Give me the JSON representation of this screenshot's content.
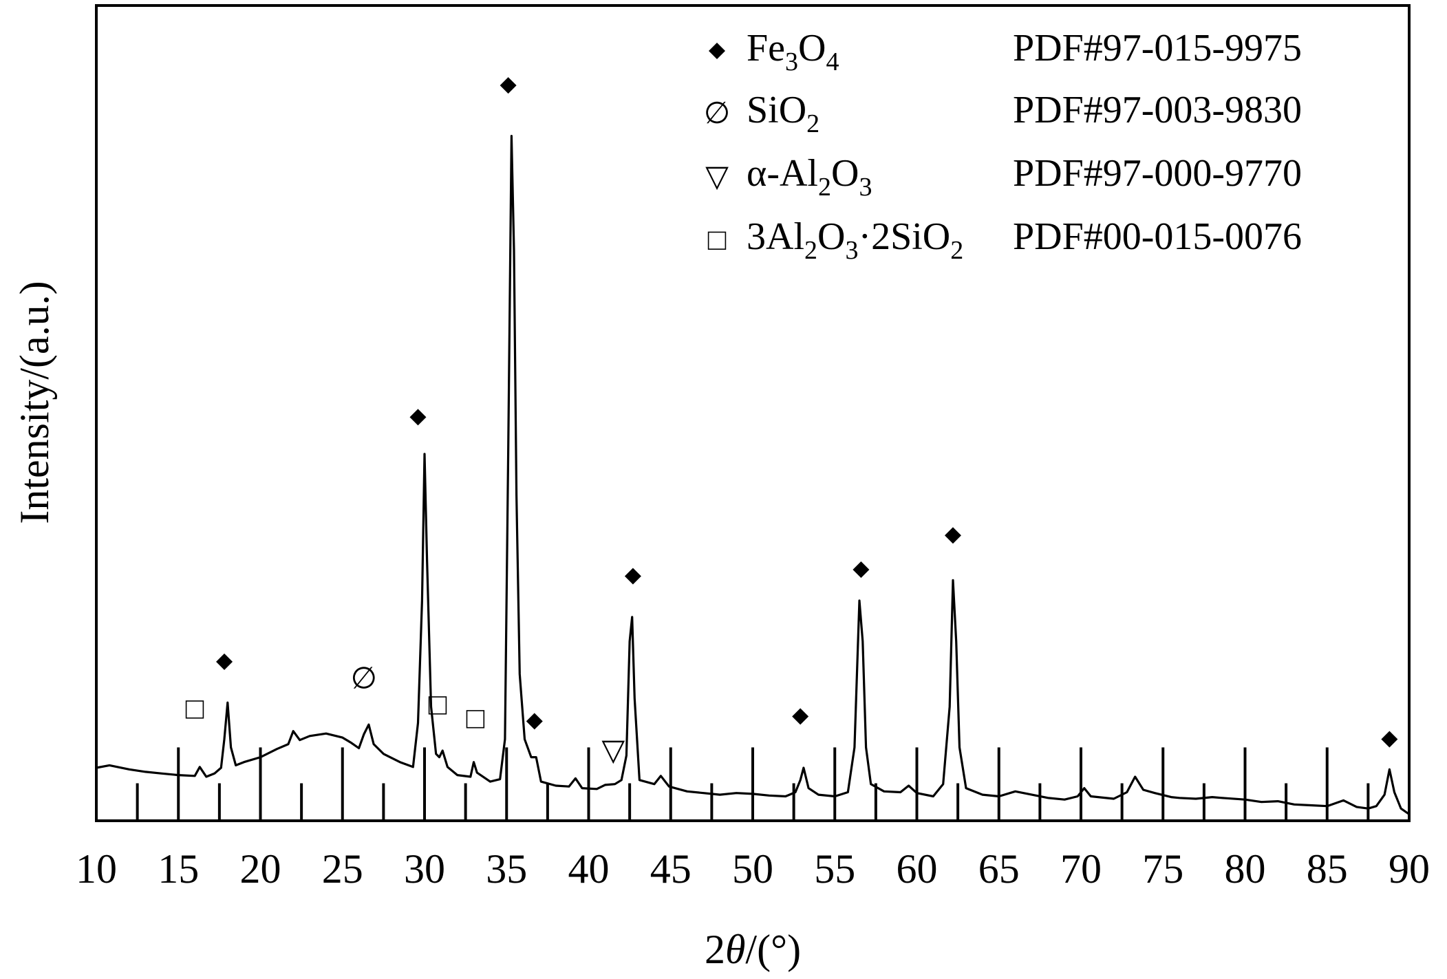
{
  "chart_data": {
    "type": "line",
    "title": "",
    "xlabel": {
      "prefix": "2",
      "symbol": "θ",
      "suffix": "/(°)"
    },
    "ylabel": "Intensity/(a.u.)",
    "xlim": [
      10,
      90
    ],
    "ylim": [
      0,
      100
    ],
    "y_ticks_shown": false,
    "grid": false,
    "x_ticks": [
      10,
      15,
      20,
      25,
      30,
      35,
      40,
      45,
      50,
      55,
      60,
      65,
      70,
      75,
      80,
      85,
      90
    ],
    "series": [
      {
        "points": [
          [
            10.0,
            6.5
          ],
          [
            10.8,
            6.8
          ],
          [
            12,
            6.3
          ],
          [
            13,
            6.0
          ],
          [
            14,
            5.8
          ],
          [
            15,
            5.6
          ],
          [
            16,
            5.5
          ],
          [
            16.3,
            6.6
          ],
          [
            16.7,
            5.4
          ],
          [
            17.2,
            5.8
          ],
          [
            17.6,
            6.5
          ],
          [
            17.8,
            10.0
          ],
          [
            18.0,
            14.5
          ],
          [
            18.2,
            9.0
          ],
          [
            18.5,
            6.8
          ],
          [
            19,
            7.2
          ],
          [
            20,
            7.8
          ],
          [
            21,
            8.8
          ],
          [
            21.7,
            9.4
          ],
          [
            22.0,
            11.0
          ],
          [
            22.4,
            9.9
          ],
          [
            23,
            10.4
          ],
          [
            24,
            10.7
          ],
          [
            25,
            10.2
          ],
          [
            25.5,
            9.6
          ],
          [
            26,
            8.9
          ],
          [
            26.3,
            10.6
          ],
          [
            26.6,
            11.8
          ],
          [
            26.9,
            9.4
          ],
          [
            27.5,
            8.2
          ],
          [
            28.5,
            7.2
          ],
          [
            29.3,
            6.6
          ],
          [
            29.6,
            12.0
          ],
          [
            29.85,
            27.0
          ],
          [
            30.0,
            45.0
          ],
          [
            30.15,
            32.0
          ],
          [
            30.4,
            14.0
          ],
          [
            30.7,
            8.2
          ],
          [
            30.9,
            7.8
          ],
          [
            31.1,
            8.6
          ],
          [
            31.4,
            6.6
          ],
          [
            32,
            5.6
          ],
          [
            32.8,
            5.4
          ],
          [
            33.0,
            7.2
          ],
          [
            33.2,
            5.9
          ],
          [
            34,
            4.8
          ],
          [
            34.6,
            5.1
          ],
          [
            34.9,
            10.0
          ],
          [
            35.1,
            45.0
          ],
          [
            35.3,
            84.0
          ],
          [
            35.45,
            70.0
          ],
          [
            35.6,
            40.0
          ],
          [
            35.8,
            18.0
          ],
          [
            36.1,
            10.0
          ],
          [
            36.5,
            7.8
          ],
          [
            36.8,
            7.8
          ],
          [
            37.1,
            4.8
          ],
          [
            38,
            4.3
          ],
          [
            38.8,
            4.2
          ],
          [
            39.2,
            5.2
          ],
          [
            39.6,
            4.0
          ],
          [
            40.5,
            3.9
          ],
          [
            41,
            4.4
          ],
          [
            41.6,
            4.5
          ],
          [
            42.0,
            5.0
          ],
          [
            42.3,
            8.0
          ],
          [
            42.5,
            22.0
          ],
          [
            42.65,
            25.0
          ],
          [
            42.8,
            15.0
          ],
          [
            43.1,
            5.0
          ],
          [
            44,
            4.5
          ],
          [
            44.4,
            5.5
          ],
          [
            44.9,
            4.2
          ],
          [
            46,
            3.6
          ],
          [
            47,
            3.4
          ],
          [
            48,
            3.2
          ],
          [
            49,
            3.4
          ],
          [
            50,
            3.3
          ],
          [
            51,
            3.1
          ],
          [
            52,
            3.0
          ],
          [
            52.6,
            3.5
          ],
          [
            52.9,
            5.0
          ],
          [
            53.1,
            6.5
          ],
          [
            53.4,
            4.0
          ],
          [
            54,
            3.2
          ],
          [
            55,
            3.0
          ],
          [
            55.8,
            3.5
          ],
          [
            56.2,
            9.0
          ],
          [
            56.5,
            27.0
          ],
          [
            56.7,
            22.0
          ],
          [
            56.9,
            9.0
          ],
          [
            57.2,
            4.5
          ],
          [
            58,
            3.6
          ],
          [
            59,
            3.5
          ],
          [
            59.5,
            4.3
          ],
          [
            60,
            3.4
          ],
          [
            61,
            3.0
          ],
          [
            61.6,
            4.5
          ],
          [
            62.0,
            14.0
          ],
          [
            62.2,
            29.5
          ],
          [
            62.4,
            22.0
          ],
          [
            62.6,
            9.0
          ],
          [
            63,
            4.0
          ],
          [
            64,
            3.2
          ],
          [
            65,
            3.0
          ],
          [
            66,
            3.6
          ],
          [
            67,
            3.2
          ],
          [
            68,
            2.8
          ],
          [
            69,
            2.6
          ],
          [
            69.8,
            3.0
          ],
          [
            70.2,
            4.0
          ],
          [
            70.6,
            3.0
          ],
          [
            72,
            2.7
          ],
          [
            72.8,
            3.5
          ],
          [
            73.3,
            5.4
          ],
          [
            73.8,
            3.8
          ],
          [
            74.5,
            3.4
          ],
          [
            75.5,
            2.9
          ],
          [
            76,
            2.8
          ],
          [
            77,
            2.7
          ],
          [
            78,
            2.9
          ],
          [
            78.6,
            2.8
          ],
          [
            80,
            2.6
          ],
          [
            81,
            2.3
          ],
          [
            82,
            2.4
          ],
          [
            83,
            2.0
          ],
          [
            84,
            1.9
          ],
          [
            85,
            1.8
          ],
          [
            86,
            2.5
          ],
          [
            86.8,
            1.7
          ],
          [
            87.5,
            1.5
          ],
          [
            88.0,
            1.8
          ],
          [
            88.5,
            3.2
          ],
          [
            88.8,
            6.3
          ],
          [
            89.1,
            3.5
          ],
          [
            89.5,
            1.5
          ],
          [
            90,
            0.8
          ]
        ]
      }
    ],
    "peak_markers": [
      {
        "x": 17.8,
        "y": 19.5,
        "symbol": "diamond"
      },
      {
        "x": 16.0,
        "y": 13.8,
        "symbol": "□"
      },
      {
        "x": 26.3,
        "y": 17.5,
        "symbol": "∅"
      },
      {
        "x": 29.6,
        "y": 49.5,
        "symbol": "diamond"
      },
      {
        "x": 30.8,
        "y": 14.3,
        "symbol": "□"
      },
      {
        "x": 33.1,
        "y": 12.6,
        "symbol": "□"
      },
      {
        "x": 35.1,
        "y": 90.2,
        "symbol": "diamond"
      },
      {
        "x": 36.7,
        "y": 12.2,
        "symbol": "diamond"
      },
      {
        "x": 41.5,
        "y": 8.7,
        "symbol": "▽"
      },
      {
        "x": 42.7,
        "y": 30.0,
        "symbol": "diamond"
      },
      {
        "x": 52.9,
        "y": 12.8,
        "symbol": "diamond"
      },
      {
        "x": 56.6,
        "y": 30.8,
        "symbol": "diamond"
      },
      {
        "x": 62.2,
        "y": 35.0,
        "symbol": "diamond"
      },
      {
        "x": 88.8,
        "y": 10.0,
        "symbol": "diamond"
      }
    ],
    "reference_lines": [
      {
        "x": 12.5,
        "h": 4.6
      },
      {
        "x": 15.0,
        "h": 9.0
      },
      {
        "x": 17.5,
        "h": 4.6
      },
      {
        "x": 20.0,
        "h": 9.0
      },
      {
        "x": 22.5,
        "h": 4.6
      },
      {
        "x": 25.0,
        "h": 9.0
      },
      {
        "x": 27.5,
        "h": 4.6
      },
      {
        "x": 30.0,
        "h": 9.0
      },
      {
        "x": 32.5,
        "h": 4.6
      },
      {
        "x": 35.0,
        "h": 9.0
      },
      {
        "x": 37.5,
        "h": 4.6
      },
      {
        "x": 40.0,
        "h": 9.0
      },
      {
        "x": 42.5,
        "h": 4.6
      },
      {
        "x": 45.0,
        "h": 9.0
      },
      {
        "x": 47.5,
        "h": 4.6
      },
      {
        "x": 50.0,
        "h": 9.0
      },
      {
        "x": 52.5,
        "h": 4.6
      },
      {
        "x": 55.0,
        "h": 9.0
      },
      {
        "x": 57.5,
        "h": 4.6
      },
      {
        "x": 60.0,
        "h": 9.0
      },
      {
        "x": 62.5,
        "h": 4.6
      },
      {
        "x": 65.0,
        "h": 9.0
      },
      {
        "x": 67.5,
        "h": 4.6
      },
      {
        "x": 70.0,
        "h": 9.0
      },
      {
        "x": 72.5,
        "h": 4.6
      },
      {
        "x": 75.0,
        "h": 9.0
      },
      {
        "x": 77.5,
        "h": 4.6
      },
      {
        "x": 80.0,
        "h": 9.0
      },
      {
        "x": 82.5,
        "h": 4.6
      },
      {
        "x": 85.0,
        "h": 9.0
      },
      {
        "x": 87.5,
        "h": 4.6
      }
    ],
    "legend": {
      "placement": "top-right",
      "entries": [
        {
          "symbol": "diamond",
          "name_parts": [
            [
              "Fe",
              ""
            ],
            [
              "3",
              "sub"
            ],
            [
              "O",
              ""
            ],
            [
              "4",
              "sub"
            ]
          ],
          "pdf": "PDF#97-015-9975"
        },
        {
          "symbol": "∅",
          "name_parts": [
            [
              "SiO",
              ""
            ],
            [
              "2",
              "sub"
            ]
          ],
          "pdf": "PDF#97-003-9830"
        },
        {
          "symbol": "▽",
          "name_parts": [
            [
              "α-Al",
              ""
            ],
            [
              "2",
              "sub"
            ],
            [
              "O",
              ""
            ],
            [
              "3",
              "sub"
            ]
          ],
          "pdf": "PDF#97-000-9770"
        },
        {
          "symbol": "□",
          "name_parts": [
            [
              "3Al",
              ""
            ],
            [
              "2",
              "sub"
            ],
            [
              "O",
              ""
            ],
            [
              "3",
              "sub"
            ],
            [
              "·2SiO",
              ""
            ],
            [
              "2",
              "sub"
            ]
          ],
          "pdf": "PDF#00-015-0076"
        }
      ]
    }
  }
}
